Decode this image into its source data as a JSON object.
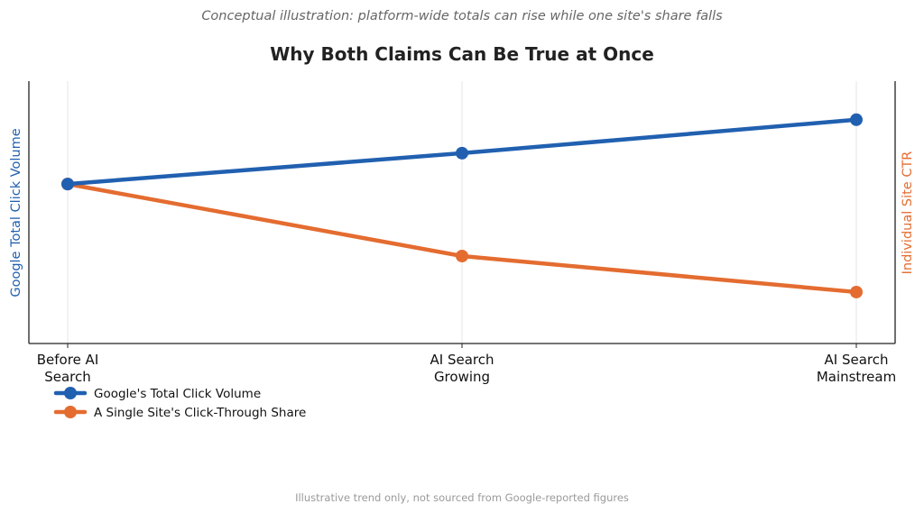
{
  "chart_data": {
    "type": "line",
    "subtitle": "Conceptual illustration: platform-wide totals can rise while one site's share falls",
    "title": "Why Both Claims Can Be True at Once",
    "ylabel_left": "Google Total Click Volume",
    "ylabel_right": "Individual Site CTR",
    "categories": [
      [
        "Before AI",
        "Search"
      ],
      [
        "AI Search",
        "Growing"
      ],
      [
        "AI Search",
        "Mainstream"
      ]
    ],
    "series": [
      {
        "name": "Google's Total Click Volume",
        "color": "#2160B0",
        "values": [
          100,
          112,
          125
        ]
      },
      {
        "name": "A Single Site's Click-Through Share",
        "color": "#E46C30",
        "values": [
          100,
          72,
          58
        ]
      }
    ],
    "ylim": [
      38,
      140
    ],
    "grid": "x",
    "legend": "bottom-left",
    "footnote": "Illustrative trend only, not sourced from Google-reported figures"
  }
}
